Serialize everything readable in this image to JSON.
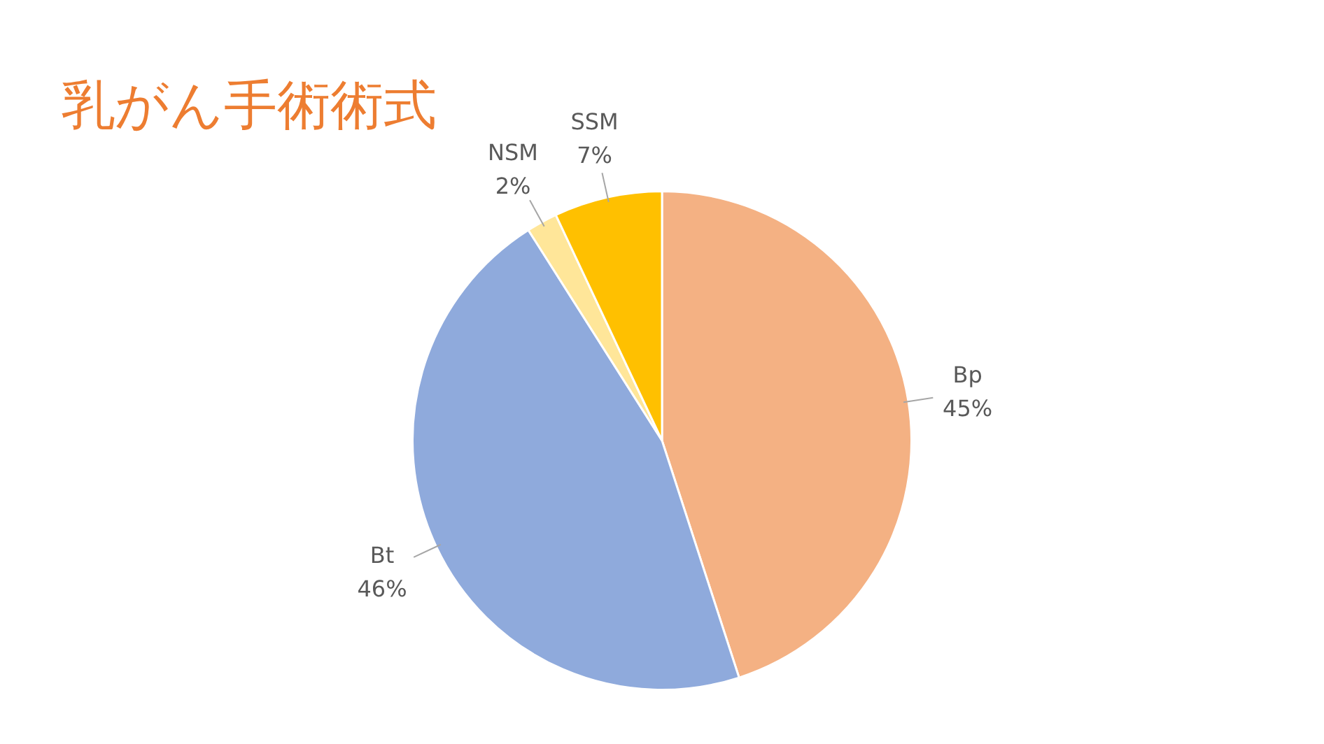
{
  "chart_data": {
    "type": "pie",
    "title": "乳がん手術術式",
    "categories": [
      "Bp",
      "Bt",
      "NSM",
      "SSM"
    ],
    "values": [
      45,
      46,
      2,
      7
    ],
    "value_labels": [
      "45%",
      "46%",
      "2%",
      "7%"
    ],
    "colors": [
      "#f4b183",
      "#8faadc",
      "#ffe699",
      "#ffc000"
    ],
    "legend": false
  }
}
